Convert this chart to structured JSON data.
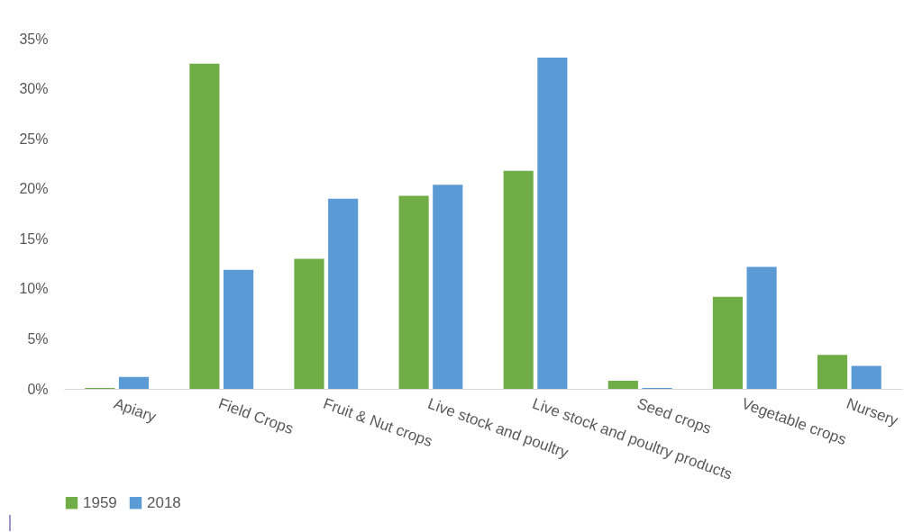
{
  "chart_data": {
    "type": "bar",
    "categories": [
      "Apiary",
      "Field Crops",
      "Fruit & Nut crops",
      "Live stock and poultry",
      "Live stock and poultry products",
      "Seed crops",
      "Vegetable crops",
      "Nursery"
    ],
    "series": [
      {
        "name": "1959",
        "color": "#70ad47",
        "values": [
          0.1,
          32.5,
          13.0,
          19.3,
          21.8,
          0.8,
          9.2,
          3.4
        ]
      },
      {
        "name": "2018",
        "color": "#5b9bd5",
        "values": [
          1.2,
          11.9,
          19.0,
          20.4,
          33.1,
          0.1,
          12.2,
          2.3
        ]
      }
    ],
    "ylim": [
      0,
      35
    ],
    "yticks": [
      {
        "value": 0,
        "label": "0%"
      },
      {
        "value": 5,
        "label": "5%"
      },
      {
        "value": 10,
        "label": "10%"
      },
      {
        "value": 15,
        "label": "15%"
      },
      {
        "value": 20,
        "label": "20%"
      },
      {
        "value": 25,
        "label": "25%"
      },
      {
        "value": 30,
        "label": "30%"
      },
      {
        "value": 35,
        "label": "35%"
      }
    ],
    "grid": false,
    "legend": "bottom"
  }
}
